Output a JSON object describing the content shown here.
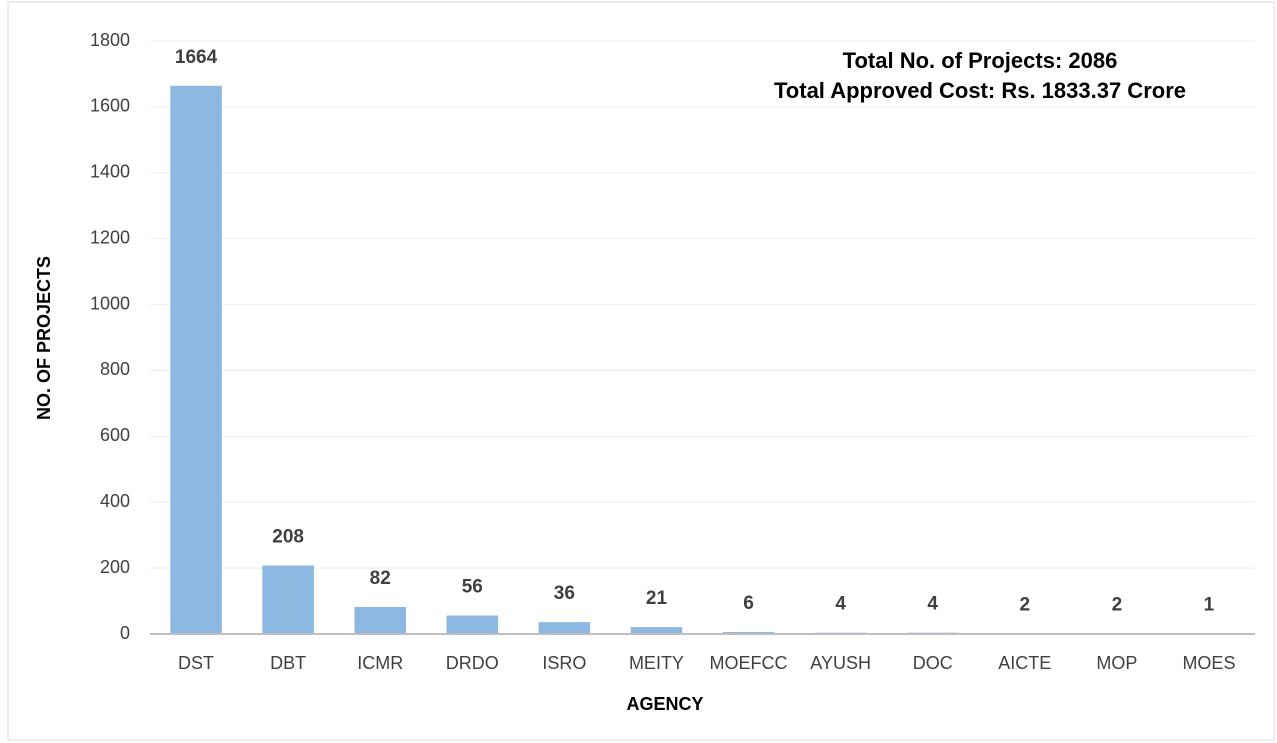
{
  "chart_data": {
    "type": "bar",
    "annotations": [
      "Total No. of Projects: 2086",
      "Total Approved Cost: Rs. 1833.37 Crore"
    ],
    "x_label": "AGENCY",
    "y_label": "NO. OF PROJECTS",
    "categories": [
      "DST",
      "DBT",
      "ICMR",
      "DRDO",
      "ISRO",
      "MEITY",
      "MOEFCC",
      "AYUSH",
      "DOC",
      "AICTE",
      "MOP",
      "MOES"
    ],
    "values": [
      1664,
      208,
      82,
      56,
      36,
      21,
      6,
      4,
      4,
      2,
      2,
      1
    ],
    "color": "#8db8e2",
    "ylim": [
      0,
      1800
    ],
    "yticks": [
      0,
      200,
      400,
      600,
      800,
      1000,
      1200,
      1400,
      1600,
      1800
    ],
    "grid": true
  }
}
